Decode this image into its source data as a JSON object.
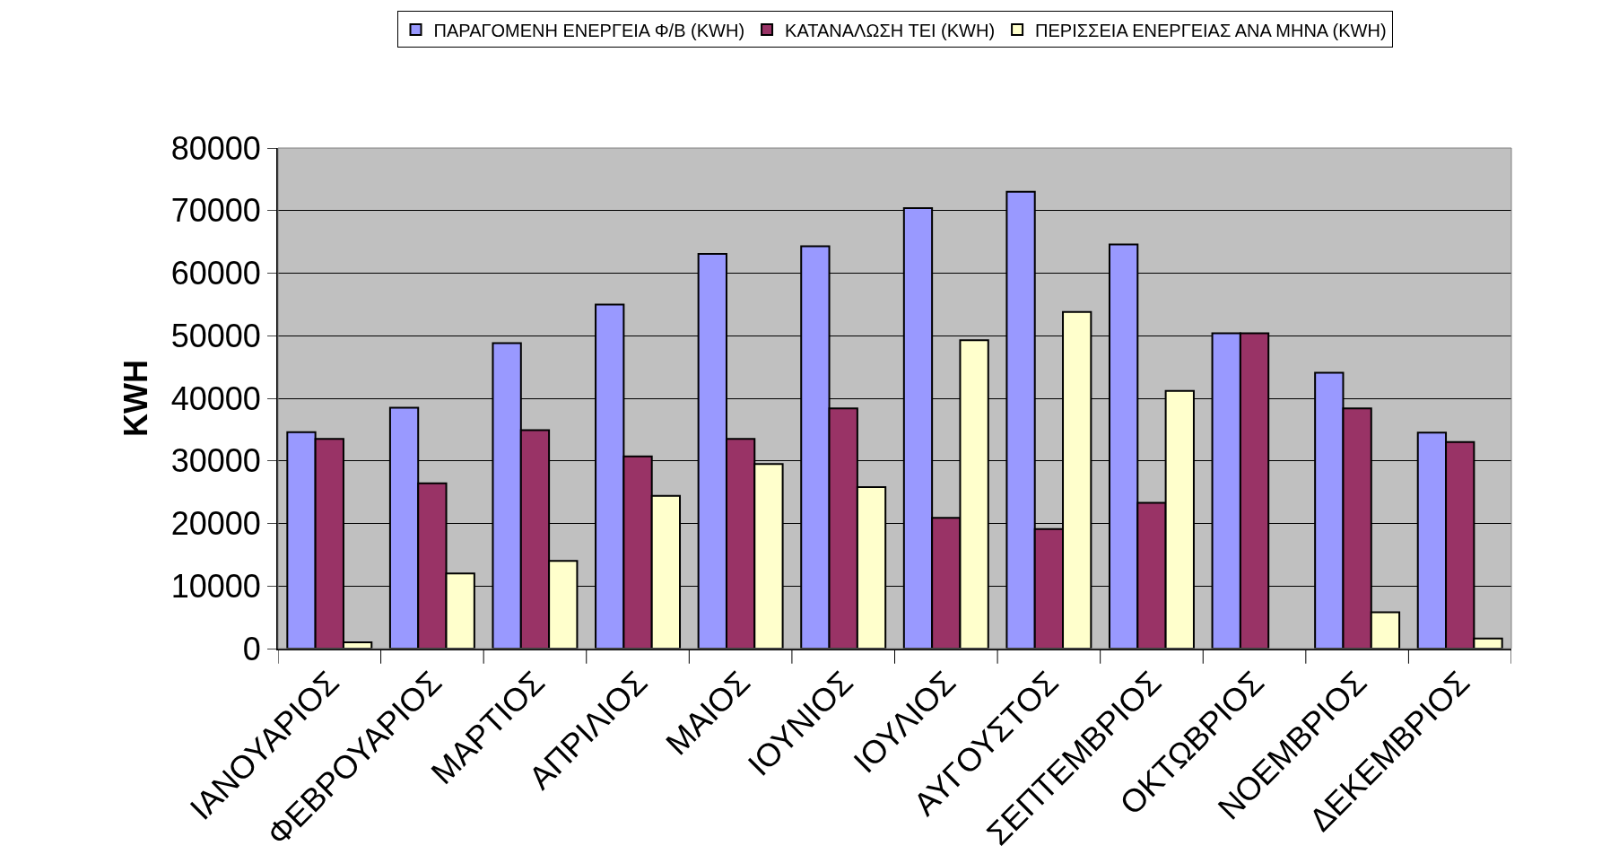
{
  "chart_data": {
    "type": "bar",
    "ylabel": "KWH",
    "categories": [
      "ΙΑΝΟΥΑΡΙΟΣ",
      "ΦΕΒΡΟΥΑΡΙΟΣ",
      "ΜΑΡΤΙΟΣ",
      "ΑΠΡΙΛΙΟΣ",
      "ΜΑΙΟΣ",
      "ΙΟΥΝΙΟΣ",
      "ΙΟΥΛΙΟΣ",
      "ΑΥΓΟΥΣΤΟΣ",
      "ΣΕΠΤΕΜΒΡΙΟΣ",
      "ΟΚΤΩΒΡΙΟΣ",
      "ΝΟΕΜΒΡΙΟΣ",
      "ΔΕΚΕΜΒΡΙΟΣ"
    ],
    "series": [
      {
        "name": "ΠΑΡΑΓΟΜΕΝΗ ΕΝΕΡΓΕΙΑ Φ/Β (KWH)",
        "color": "#9999ff",
        "values": [
          34600,
          38500,
          48800,
          55000,
          63100,
          64300,
          70400,
          73000,
          64600,
          50400,
          44100,
          34500
        ]
      },
      {
        "name": "ΚΑΤΑΝΑΛΩΣΗ ΤΕΙ (KWH)",
        "color": "#993366",
        "values": [
          33500,
          26400,
          34900,
          30700,
          33500,
          38400,
          20900,
          19100,
          23300,
          50400,
          38400,
          33000
        ]
      },
      {
        "name": "ΠΕΡΙΣΣΕΙΑ ΕΝΕΡΓΕΙΑΣ ΑΝΑ ΜΗΝΑ (KWH)",
        "color": "#ffffcc",
        "values": [
          1000,
          12000,
          14000,
          24400,
          29500,
          25800,
          49300,
          53800,
          41200,
          null,
          5800,
          1600
        ]
      }
    ],
    "ylim": [
      0,
      80000
    ],
    "yticks": [
      0,
      10000,
      20000,
      30000,
      40000,
      50000,
      60000,
      70000,
      80000
    ],
    "grid": "y",
    "legend": "top"
  }
}
